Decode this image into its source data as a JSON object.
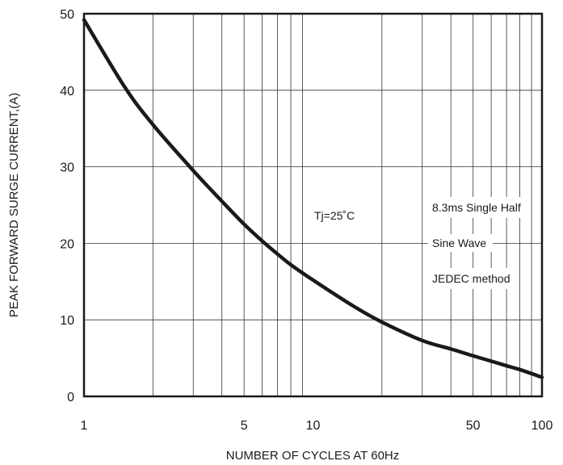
{
  "chart_data": {
    "type": "line",
    "title": "",
    "xlabel": "NUMBER OF CYCLES AT 60Hz",
    "ylabel": "PEAK FORWARD SURGE CURRENT,(A)",
    "xscale": "log",
    "xlim": [
      1,
      100
    ],
    "ylim": [
      0,
      50
    ],
    "grid": true,
    "x_tick_labels": [
      "1",
      "5",
      "10",
      "50",
      "100"
    ],
    "y_tick_labels": [
      "0",
      "10",
      "20",
      "30",
      "40",
      "50"
    ],
    "annotations": {
      "temperature": "Tj=25˚C",
      "condition_line1": "8.3ms Single Half",
      "condition_line2": "Sine Wave",
      "condition_line3": "JEDEC method"
    },
    "series": [
      {
        "x": [
          1,
          1.5,
          2,
          3,
          4,
          5,
          6,
          7,
          8,
          10,
          15,
          20,
          30,
          40,
          50,
          60,
          70,
          80,
          100
        ],
        "y": [
          49.2,
          40.5,
          35.5,
          29.5,
          25.5,
          22.5,
          20.3,
          18.6,
          17.2,
          15.2,
          11.8,
          9.7,
          7.3,
          6.2,
          5.3,
          4.6,
          4.0,
          3.5,
          2.5
        ]
      }
    ],
    "colors": {
      "line": "#1a1a1a",
      "grid": "#333333",
      "frame": "#1a1a1a"
    }
  }
}
